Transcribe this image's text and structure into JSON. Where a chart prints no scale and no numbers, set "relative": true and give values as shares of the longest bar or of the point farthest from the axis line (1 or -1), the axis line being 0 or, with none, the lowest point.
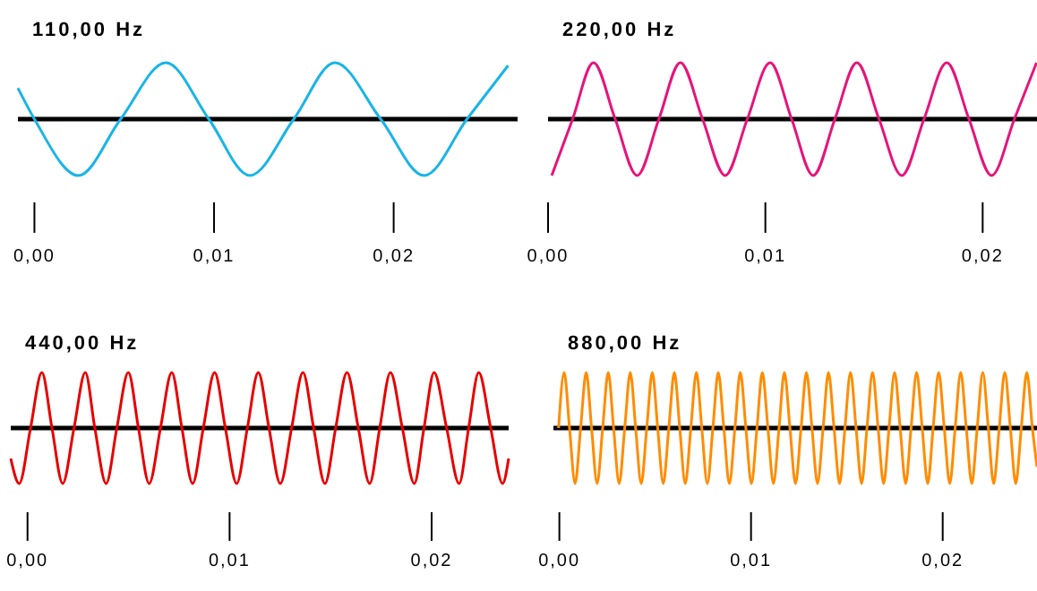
{
  "chart_data": [
    {
      "type": "line",
      "title": "110,00 Hz",
      "relative": true,
      "xlim": [
        -0.00092,
        0.0269
      ],
      "xticks": [
        {
          "value": 0,
          "label": "0,00"
        },
        {
          "value": 0.01,
          "label": "0,01"
        },
        {
          "value": 0.02,
          "label": "0,02"
        }
      ],
      "x": [
        -0.00092,
        0,
        0.00245,
        0.0048,
        0.00732,
        0.00971,
        0.01199,
        0.01444,
        0.01673,
        0.01928,
        0.0217,
        0.02408,
        0.02637
      ],
      "series": [
        {
          "color": "#1ab4e6",
          "values": [
            0.55,
            0,
            -1,
            0,
            1,
            0,
            -1,
            0,
            1,
            0,
            -1,
            0,
            0.95
          ]
        }
      ]
    },
    {
      "type": "line",
      "title": "220,00 Hz",
      "relative": true,
      "xlim": [
        0,
        0.0225
      ],
      "xticks": [
        {
          "value": 0,
          "label": "0,00"
        },
        {
          "value": 0.01,
          "label": "0,01"
        },
        {
          "value": 0.02,
          "label": "0,02"
        }
      ],
      "x": [
        0.00017,
        0.00113,
        0.00209,
        0.00309,
        0.0041,
        0.0051,
        0.00609,
        0.00711,
        0.00815,
        0.00917,
        0.01022,
        0.01121,
        0.0122,
        0.0132,
        0.01421,
        0.01523,
        0.01628,
        0.0173,
        0.01835,
        0.01937,
        0.02041,
        0.02146,
        0.02248
      ],
      "series": [
        {
          "color": "#e6147a",
          "values": [
            -1,
            0,
            1,
            0,
            -1,
            0,
            1,
            0,
            -1,
            0,
            1,
            0,
            -1,
            0,
            1,
            0,
            -1,
            0,
            1,
            0,
            -1,
            0,
            1
          ]
        }
      ]
    },
    {
      "type": "line",
      "title": "440,00 Hz",
      "relative": true,
      "xlim": [
        -0.00083,
        0.02381
      ],
      "xticks": [
        {
          "value": 0,
          "label": "0,00"
        },
        {
          "value": 0.01,
          "label": "0,01"
        },
        {
          "value": 0.02,
          "label": "0,02"
        }
      ],
      "x": [
        -0.00083,
        -0.00041,
        0.00015,
        0.00071,
        0.00121,
        0.00174,
        0.0023,
        0.00286,
        0.00333,
        0.00389,
        0.00442,
        0.00499,
        0.00549,
        0.00602,
        0.00658,
        0.00714,
        0.00764,
        0.00817,
        0.0087,
        0.00926,
        0.00979,
        0.01035,
        0.01088,
        0.01142,
        0.01195,
        0.01251,
        0.01307,
        0.01363,
        0.01416,
        0.01472,
        0.01525,
        0.01581,
        0.01637,
        0.01693,
        0.01743,
        0.01796,
        0.01855,
        0.01914,
        0.01962,
        0.02012,
        0.02074,
        0.02136,
        0.02183,
        0.02233,
        0.02292,
        0.02351,
        0.02381
      ],
      "series": [
        {
          "color": "#e60000",
          "values": [
            -0.55,
            -1,
            0,
            1,
            0,
            -1,
            0,
            1,
            0,
            -1,
            0,
            1,
            0,
            -1,
            0,
            1,
            0,
            -1,
            0,
            1,
            0,
            -1,
            0,
            1,
            0,
            -1,
            0,
            1,
            0,
            -1,
            0,
            1,
            0,
            -1,
            0,
            1,
            0,
            -1,
            0,
            1,
            0,
            -1,
            0,
            1,
            0,
            -1,
            -0.55
          ]
        }
      ]
    },
    {
      "type": "line",
      "title": "880,00 Hz",
      "relative": true,
      "xlim": [
        -0.00031,
        0.02492
      ],
      "xticks": [
        {
          "value": 0,
          "label": "0,00"
        },
        {
          "value": 0.01,
          "label": "0,01"
        },
        {
          "value": 0.02,
          "label": "0,02"
        }
      ],
      "x": [
        -4e-05,
        0.00025,
        0.00053,
        0.00082,
        0.00111,
        0.0014,
        0.00168,
        0.00197,
        0.00226,
        0.00255,
        0.00283,
        0.00312,
        0.00341,
        0.0037,
        0.00398,
        0.00427,
        0.00456,
        0.00485,
        0.00513,
        0.00542,
        0.00571,
        0.006,
        0.00628,
        0.00657,
        0.00686,
        0.00715,
        0.00743,
        0.00772,
        0.00801,
        0.00829,
        0.00858,
        0.00887,
        0.00916,
        0.00944,
        0.00973,
        0.01002,
        0.01031,
        0.01059,
        0.01088,
        0.01117,
        0.01146,
        0.01174,
        0.01203,
        0.01232,
        0.01261,
        0.01289,
        0.01318,
        0.01347,
        0.01376,
        0.01404,
        0.01433,
        0.01462,
        0.0149,
        0.01519,
        0.01548,
        0.01577,
        0.01605,
        0.01634,
        0.01663,
        0.01692,
        0.0172,
        0.01749,
        0.01778,
        0.01807,
        0.01835,
        0.01864,
        0.01893,
        0.01922,
        0.0195,
        0.01979,
        0.02008,
        0.02037,
        0.02065,
        0.02094,
        0.02123,
        0.02152,
        0.0218,
        0.02209,
        0.02238,
        0.02266,
        0.02295,
        0.02324,
        0.02353,
        0.02381,
        0.0241,
        0.02439,
        0.02468,
        0.02492
      ],
      "series": [
        {
          "color": "#ff8c00",
          "values": [
            0,
            1,
            0,
            -1,
            0,
            1,
            0,
            -1,
            0,
            1,
            0,
            -1,
            0,
            1,
            0,
            -1,
            0,
            1,
            0,
            -1,
            0,
            1,
            0,
            -1,
            0,
            1,
            0,
            -1,
            0,
            1,
            0,
            -1,
            0,
            1,
            0,
            -1,
            0,
            1,
            0,
            -1,
            0,
            1,
            0,
            -1,
            0,
            1,
            0,
            -1,
            0,
            1,
            0,
            -1,
            0,
            1,
            0,
            -1,
            0,
            1,
            0,
            -1,
            0,
            1,
            0,
            -1,
            0,
            1,
            0,
            -1,
            0,
            1,
            0,
            -1,
            0,
            1,
            0,
            -1,
            0,
            1,
            0,
            -1,
            0,
            1,
            0,
            -1,
            0,
            1,
            0,
            -0.7
          ]
        }
      ]
    }
  ]
}
